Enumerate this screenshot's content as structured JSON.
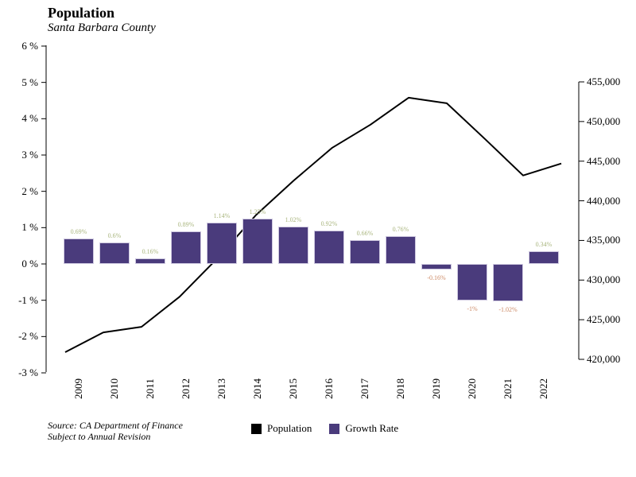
{
  "header": {
    "title": "Population",
    "subtitle": "Santa Barbara County"
  },
  "source": {
    "line1": "Source: CA Department of Finance",
    "line2": "Subject to Annual Revision"
  },
  "legend": [
    {
      "label": "Population",
      "color": "#000000"
    },
    {
      "label": "Growth Rate",
      "color": "#4a3b7c"
    }
  ],
  "colors": {
    "bar": "#4a3b7c",
    "line": "#000000",
    "axis": "#000000",
    "positive_label": "#a9b57e",
    "negative_label": "#cd8a66"
  },
  "chart_data": {
    "type": "combo",
    "title": "Population",
    "subtitle": "Santa Barbara County",
    "categories": [
      "2009",
      "2010",
      "2011",
      "2012",
      "2013",
      "2014",
      "2015",
      "2016",
      "2017",
      "2018",
      "2019",
      "2020",
      "2021",
      "2022"
    ],
    "series": [
      {
        "name": "Population",
        "type": "line",
        "axis": "right",
        "color": "#000000",
        "values": [
          420900,
          423400,
          424100,
          427900,
          432800,
          438200,
          442600,
          446700,
          449600,
          453000,
          452300,
          447800,
          443200,
          444700
        ]
      },
      {
        "name": "Growth Rate",
        "type": "bar",
        "axis": "left",
        "color": "#4a3b7c",
        "values": [
          0.69,
          0.6,
          0.16,
          0.89,
          1.14,
          1.25,
          1.02,
          0.92,
          0.66,
          0.76,
          -0.16,
          -1,
          -1.02,
          0.34
        ],
        "labels": [
          "0.69%",
          "0.6%",
          "0.16%",
          "0.89%",
          "1.14%",
          "1.25%",
          "1.02%",
          "0.92%",
          "0.66%",
          "0.76%",
          "-0.16%",
          "-1%",
          "-1.02%",
          "0.34%"
        ]
      }
    ],
    "left_axis": {
      "unit": "%",
      "min": -3,
      "max": 6,
      "ticks": [
        {
          "value": 6,
          "label": "6 %"
        },
        {
          "value": 5,
          "label": "5 %"
        },
        {
          "value": 4,
          "label": "4 %"
        },
        {
          "value": 3,
          "label": "3 %"
        },
        {
          "value": 2,
          "label": "2 %"
        },
        {
          "value": 1,
          "label": "1 %"
        },
        {
          "value": 0,
          "label": "0 %"
        },
        {
          "value": -1,
          "label": "-1 %"
        },
        {
          "value": -2,
          "label": "-2 %"
        },
        {
          "value": -3,
          "label": "-3 %"
        }
      ]
    },
    "right_axis": {
      "min": 420000,
      "max": 455000,
      "ticks": [
        {
          "value": 455000,
          "label": "455,000"
        },
        {
          "value": 450000,
          "label": "450,000"
        },
        {
          "value": 445000,
          "label": "445,000"
        },
        {
          "value": 440000,
          "label": "440,000"
        },
        {
          "value": 435000,
          "label": "435,000"
        },
        {
          "value": 430000,
          "label": "430,000"
        },
        {
          "value": 425000,
          "label": "425,000"
        },
        {
          "value": 420000,
          "label": "420,000"
        }
      ]
    },
    "x_tick_rotation": -90,
    "grid": false,
    "legend_position": "bottom"
  }
}
